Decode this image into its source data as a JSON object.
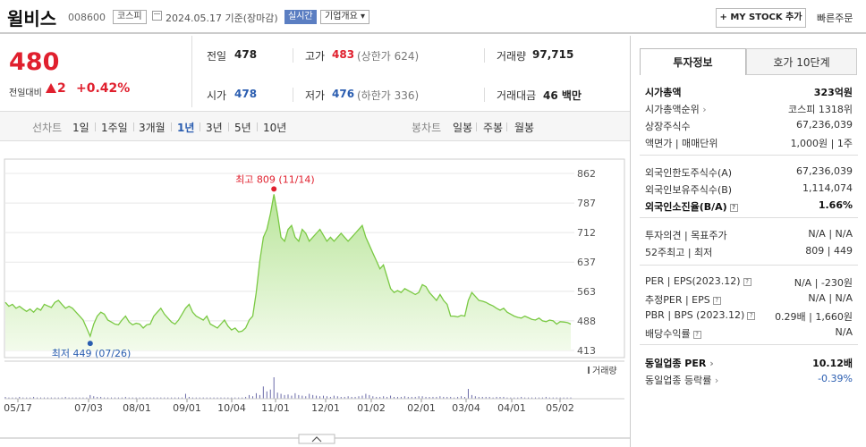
{
  "header": {
    "stock_name": "윌비스",
    "stock_code": "008600",
    "market_badge": "코스피",
    "date_text": "2024.05.17  기준(장마감)",
    "realtime_label": "실시간",
    "company_info_label": "기업개요 ▾",
    "mystock_label": "+ MY STOCK 추가",
    "quick_order_label": "빠른주문"
  },
  "price": {
    "current": "480",
    "change_label": "전일대비",
    "change_value": "2",
    "change_pct": "+0.42%",
    "up_color": "#e0202e",
    "down_color": "#2a5db0"
  },
  "quote": {
    "prev_close_label": "전일",
    "prev_close": "478",
    "high_label": "고가",
    "high": "483",
    "upper_limit": "(상한가 624)",
    "volume_label": "거래량",
    "volume": "97,715",
    "open_label": "시가",
    "open": "478",
    "low_label": "저가",
    "low": "476",
    "lower_limit": "(하한가 336)",
    "amount_label": "거래대금",
    "amount": "46 백만"
  },
  "period_tabs": {
    "line_label": "선차트",
    "items": [
      "1일",
      "1주일",
      "3개월",
      "1년",
      "3년",
      "5년",
      "10년"
    ],
    "selected": "1년",
    "candle_label": "봉차트",
    "candle_items": [
      "일봉",
      "주봉",
      "월봉"
    ]
  },
  "chart_data": {
    "type": "area",
    "y_ticks": [
      "862",
      "787",
      "712",
      "637",
      "563",
      "488",
      "413"
    ],
    "ylim": [
      413,
      862
    ],
    "x_ticks": [
      "05/17",
      "07/03",
      "08/01",
      "09/01",
      "10/04",
      "11/01",
      "12/01",
      "01/02",
      "02/01",
      "03/04",
      "04/01",
      "05/02"
    ],
    "high_label": "최고  809 (11/14)",
    "low_label": "최저  449 (07/26)",
    "volume_legend": "거래량",
    "line_color": "#7ac943",
    "fill_color": "#e4f6d4",
    "series": [
      {
        "values": [
          535,
          525,
          530,
          520,
          525,
          518,
          512,
          518,
          510,
          520,
          515,
          530,
          526,
          522,
          535,
          540,
          530,
          520,
          525,
          520,
          510,
          500,
          490,
          470,
          449,
          480,
          500,
          510,
          505,
          490,
          485,
          480,
          478,
          490,
          500,
          485,
          478,
          482,
          480,
          470,
          478,
          480,
          500,
          510,
          520,
          505,
          495,
          485,
          480,
          490,
          505,
          520,
          530,
          510,
          500,
          495,
          490,
          500,
          480,
          475,
          470,
          480,
          490,
          475,
          465,
          470,
          460,
          462,
          470,
          490,
          500,
          560,
          640,
          700,
          720,
          760,
          809,
          760,
          700,
          690,
          720,
          730,
          700,
          690,
          720,
          710,
          690,
          700,
          710,
          720,
          705,
          690,
          700,
          690,
          700,
          710,
          700,
          690,
          700,
          710,
          720,
          730,
          700,
          680,
          660,
          640,
          620,
          630,
          600,
          570,
          560,
          565,
          560,
          570,
          565,
          560,
          555,
          560,
          580,
          575,
          560,
          550,
          540,
          555,
          540,
          530,
          500,
          500,
          498,
          502,
          500,
          540,
          560,
          550,
          540,
          538,
          535,
          530,
          526,
          520,
          515,
          520,
          510,
          505,
          500,
          497,
          495,
          500,
          496,
          492,
          490,
          495,
          488,
          486,
          490,
          488,
          480,
          486,
          485,
          484,
          480
        ]
      }
    ],
    "volume": [
      3,
      2,
      2,
      2,
      3,
      2,
      2,
      2,
      3,
      2,
      2,
      2,
      2,
      2,
      2,
      2,
      2,
      3,
      2,
      2,
      2,
      2,
      2,
      2,
      6,
      4,
      3,
      3,
      2,
      2,
      2,
      2,
      2,
      2,
      3,
      2,
      2,
      2,
      2,
      2,
      2,
      2,
      2,
      2,
      2,
      2,
      2,
      2,
      2,
      2,
      2,
      8,
      3,
      2,
      2,
      2,
      2,
      2,
      2,
      2,
      2,
      2,
      2,
      2,
      2,
      2,
      2,
      2,
      3,
      6,
      4,
      9,
      6,
      20,
      12,
      15,
      35,
      10,
      8,
      6,
      7,
      5,
      9,
      6,
      5,
      4,
      8,
      6,
      5,
      4,
      5,
      4,
      3,
      5,
      4,
      3,
      3,
      4,
      3,
      3,
      4,
      5,
      8,
      6,
      4,
      3,
      3,
      4,
      3,
      5,
      3,
      3,
      3,
      4,
      3,
      3,
      3,
      4,
      4,
      3,
      3,
      3,
      3,
      4,
      3,
      3,
      3,
      2,
      3,
      4,
      3,
      16,
      6,
      4,
      3,
      3,
      3,
      3,
      2,
      3,
      3,
      3,
      2,
      2,
      2,
      2,
      3,
      2,
      2,
      2,
      2,
      2,
      2,
      3,
      2,
      2,
      2,
      2,
      2,
      2,
      2
    ]
  },
  "invest_panel": {
    "tab_active": "투자정보",
    "tab_other": "호가 10단계",
    "group1": [
      {
        "k": "시가총액",
        "v": "323억원",
        "bold": true
      },
      {
        "k": "시가총액순위",
        "v": "코스피 1318위"
      },
      {
        "k": "상장주식수",
        "v": "67,236,039"
      },
      {
        "k": "액면가 | 매매단위",
        "v": "1,000원 | 1주"
      }
    ],
    "group2": [
      {
        "k": "외국인한도주식수(A)",
        "v": "67,236,039"
      },
      {
        "k": "외국인보유주식수(B)",
        "v": "1,114,074"
      },
      {
        "k": "외국인소진율(B/A)",
        "v": "1.66%",
        "bold": true
      }
    ],
    "group3": [
      {
        "k": "투자의견 | 목표주가",
        "v": "N/A | N/A"
      },
      {
        "k": "52주최고 | 최저",
        "v": "809 | 449"
      }
    ],
    "group4": [
      {
        "k": "PER | EPS(2023.12)",
        "v": "N/A | -230원"
      },
      {
        "k": "추정PER | EPS",
        "v": "N/A | N/A"
      },
      {
        "k": "PBR | BPS (2023.12)",
        "v": "0.29배 | 1,660원"
      },
      {
        "k": "배당수익률",
        "v": "N/A"
      }
    ],
    "group5": [
      {
        "k": "동일업종 PER",
        "v": "10.12배",
        "bold": true
      },
      {
        "k": "동일업종 등락률",
        "v": "-0.39%",
        "blue": true
      }
    ]
  }
}
